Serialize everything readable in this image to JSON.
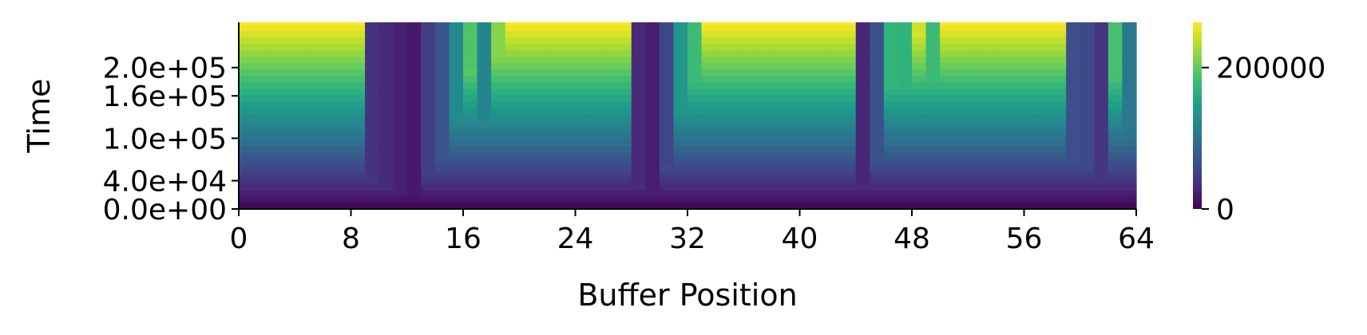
{
  "chart_data": {
    "type": "heatmap",
    "xlabel": "Buffer Position",
    "ylabel": "Time",
    "x_range": [
      0,
      64
    ],
    "y_range": [
      0,
      264000
    ],
    "x_ticks": [
      0,
      8,
      16,
      24,
      32,
      40,
      48,
      56,
      64
    ],
    "y_ticks": [
      0,
      40000,
      100000,
      160000,
      200000
    ],
    "y_tick_labels": [
      "0.0e+00",
      "4.0e+04",
      "1.0e+05",
      "1.6e+05",
      "2.0e+05"
    ],
    "colorbar": {
      "colormap": "viridis",
      "range": [
        0,
        264000
      ],
      "ticks": [
        0,
        200000
      ],
      "tick_labels": [
        "0",
        "200000"
      ]
    },
    "n_positions": 64,
    "n_time_steps": 30,
    "time_step": 9000,
    "active_positions": [
      9,
      10,
      11,
      12,
      13,
      14,
      15,
      16,
      17,
      18,
      28,
      29,
      30,
      31,
      32,
      44,
      45,
      46,
      47,
      48,
      49,
      59,
      60,
      61,
      62,
      63
    ],
    "active_start_times": [
      40000,
      32000,
      24000,
      18000,
      48000,
      70000,
      125000,
      190000,
      120000,
      215000,
      30000,
      22000,
      56000,
      140000,
      180000,
      28000,
      66000,
      172000,
      170000,
      246000,
      180000,
      64000,
      60000,
      42000,
      186000,
      105000
    ],
    "grid": false,
    "legend": "none"
  },
  "colors": {
    "viridis": [
      "#440154",
      "#482878",
      "#3e4989",
      "#31688e",
      "#26828e",
      "#1f9e89",
      "#35b779",
      "#6ece58",
      "#b5de2b",
      "#fde725"
    ]
  }
}
